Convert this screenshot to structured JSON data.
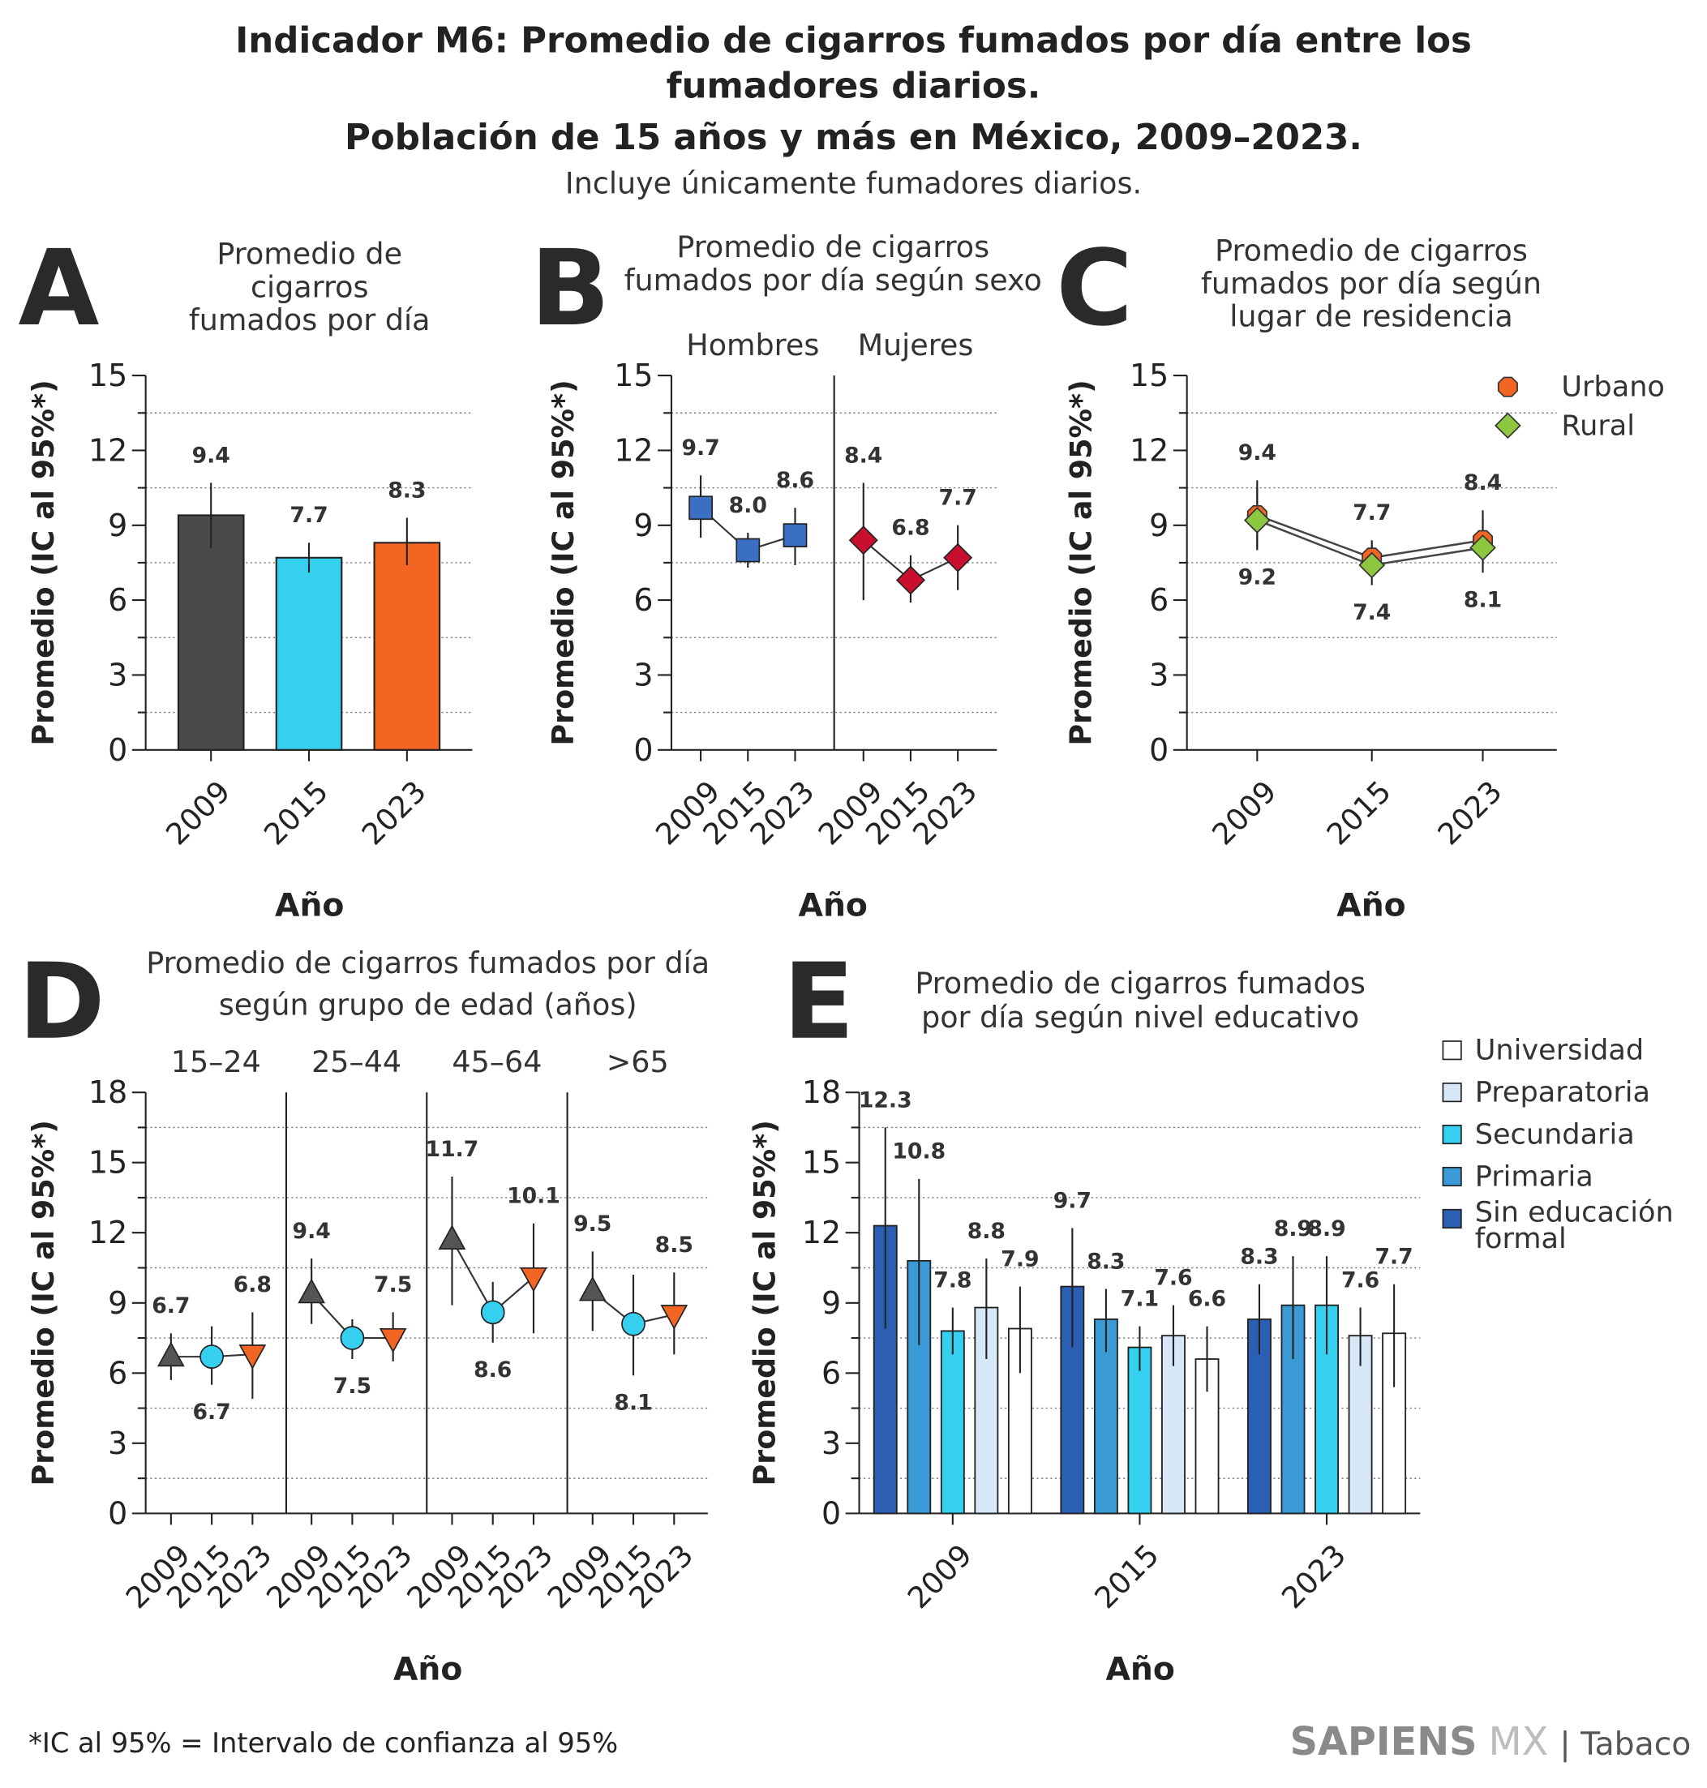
{
  "header": {
    "title": [
      "Indicador M6: Promedio de cigarros fumados por día entre los",
      "fumadores diarios.",
      "Población de 15 años y más en México, 2009–2023."
    ],
    "subtitle": "Incluye únicamente fumadores diarios."
  },
  "footer": {
    "note": "*IC al 95% = Intervalo de confianza al 95%",
    "brand": "SAPIENS",
    "brand_suffix": "MX",
    "section": "| Tabaco"
  },
  "chart_data": [
    {
      "type": "bar",
      "letter": "A",
      "title": [
        "Promedio de",
        "cigarros",
        "fumados por día"
      ],
      "y_label": "Promedio (IC al 95%*)",
      "x_label": "Año",
      "categories": [
        "2009",
        "2015",
        "2023"
      ],
      "values": [
        9.4,
        7.7,
        8.3
      ],
      "ci_low": [
        8.1,
        7.1,
        7.4
      ],
      "ci_high": [
        10.7,
        8.3,
        9.3
      ],
      "colors": [
        "#4a4a4a",
        "#35d0f0",
        "#f26522"
      ],
      "ylim": [
        0,
        15
      ],
      "yticks": [
        0,
        3,
        6,
        9,
        12,
        15
      ],
      "minor_yticks": [
        1.5,
        4.5,
        7.5,
        10.5,
        13.5
      ],
      "grid": true
    },
    {
      "type": "dot_groups",
      "letter": "B",
      "title": [
        "Promedio de cigarros",
        "fumados por día según sexo"
      ],
      "y_label": "Promedio (IC al 95%*)",
      "x_label": "Año",
      "groups": [
        {
          "name": "Hombres",
          "categories": [
            "2009",
            "2015",
            "2023"
          ],
          "values": [
            9.7,
            8.0,
            8.6
          ],
          "value_labels": [
            "9.7",
            "8.0",
            "8.6"
          ],
          "ci_low": [
            8.5,
            7.3,
            7.4
          ],
          "ci_high": [
            11.0,
            8.7,
            9.7
          ],
          "color": "#3a6fc4",
          "marker": "square"
        },
        {
          "name": "Mujeres",
          "categories": [
            "2009",
            "2015",
            "2023"
          ],
          "values": [
            8.4,
            6.8,
            7.7
          ],
          "ci_low": [
            6.0,
            5.9,
            6.4
          ],
          "ci_high": [
            10.7,
            7.8,
            9.0
          ],
          "color": "#c8102e",
          "marker": "diamond"
        }
      ],
      "ylim": [
        0,
        15
      ],
      "yticks": [
        0,
        3,
        6,
        9,
        12,
        15
      ],
      "minor_yticks": [
        1.5,
        4.5,
        7.5,
        10.5,
        13.5
      ],
      "grid": true
    },
    {
      "type": "line",
      "letter": "C",
      "title": [
        "Promedio de cigarros",
        "fumados por día según",
        "lugar de residencia"
      ],
      "y_label": "Promedio (IC al 95%*)",
      "x_label": "Año",
      "categories": [
        "2009",
        "2015",
        "2023"
      ],
      "series": [
        {
          "name": "Urbano",
          "color": "#f26522",
          "marker": "octagon",
          "values": [
            9.4,
            7.7,
            8.4
          ],
          "ci_low": [
            8.1,
            7.0,
            7.4
          ],
          "ci_high": [
            10.8,
            8.4,
            9.6
          ]
        },
        {
          "name": "Rural",
          "color": "#8dc63f",
          "marker": "diamond",
          "values": [
            9.2,
            7.4,
            8.1
          ],
          "ci_low": [
            8.0,
            6.6,
            7.1
          ],
          "ci_high": [
            10.5,
            8.2,
            9.3
          ]
        }
      ],
      "legend": "top-right",
      "ylim": [
        0,
        15
      ],
      "yticks": [
        0,
        3,
        6,
        9,
        12,
        15
      ],
      "minor_yticks": [
        1.5,
        4.5,
        7.5,
        10.5,
        13.5
      ],
      "grid": true
    },
    {
      "type": "dot_groups",
      "letter": "D",
      "title": [
        "Promedio de cigarros fumados por día",
        "según grupo de edad (años)"
      ],
      "y_label": "Promedio (IC al 95%*)",
      "x_label": "Año",
      "colors": [
        "#555555",
        "#35d0f0",
        "#f26522"
      ],
      "markers": [
        "triangle-up",
        "circle",
        "triangle-down"
      ],
      "groups": [
        {
          "name": "15–24",
          "categories": [
            "2009",
            "2015",
            "2023"
          ],
          "values": [
            6.7,
            6.7,
            6.8
          ],
          "ci_low": [
            5.7,
            5.5,
            4.9
          ],
          "ci_high": [
            7.7,
            8.0,
            8.6
          ]
        },
        {
          "name": "25–44",
          "categories": [
            "2009",
            "2015",
            "2023"
          ],
          "values": [
            9.4,
            7.5,
            7.5
          ],
          "ci_low": [
            8.1,
            6.6,
            6.5
          ],
          "ci_high": [
            10.9,
            8.3,
            8.6
          ]
        },
        {
          "name": "45–64",
          "categories": [
            "2009",
            "2015",
            "2023"
          ],
          "values": [
            11.7,
            8.6,
            10.1
          ],
          "ci_low": [
            8.9,
            7.3,
            7.7
          ],
          "ci_high": [
            14.4,
            9.9,
            12.4
          ]
        },
        {
          "name": ">65",
          "categories": [
            "2009",
            "2015",
            "2023"
          ],
          "values": [
            9.5,
            8.1,
            8.5
          ],
          "ci_low": [
            7.8,
            5.9,
            6.8
          ],
          "ci_high": [
            11.2,
            10.2,
            10.3
          ]
        }
      ],
      "ylim": [
        0,
        18
      ],
      "yticks": [
        0,
        3,
        6,
        9,
        12,
        15,
        18
      ],
      "minor_yticks": [
        1.5,
        4.5,
        7.5,
        10.5,
        13.5,
        16.5
      ],
      "grid": true
    },
    {
      "type": "grouped_bar",
      "letter": "E",
      "title": [
        "Promedio de cigarros fumados",
        "por día según nivel educativo"
      ],
      "y_label": "Promedio (IC al 95%*)",
      "x_label": "Año",
      "categories": [
        "2009",
        "2015",
        "2023"
      ],
      "series": [
        {
          "name": "Sin educación formal",
          "color": "#2b5fb3",
          "values": [
            12.3,
            9.7,
            8.3
          ],
          "ci_low": [
            7.9,
            7.1,
            6.8
          ],
          "ci_high": [
            16.5,
            12.2,
            9.8
          ]
        },
        {
          "name": "Primaria",
          "color": "#3a9ad6",
          "values": [
            10.8,
            8.3,
            8.9
          ],
          "ci_low": [
            7.2,
            6.9,
            6.6
          ],
          "ci_high": [
            14.3,
            9.6,
            11.0
          ]
        },
        {
          "name": "Secundaria",
          "color": "#35d0f0",
          "values": [
            7.8,
            7.1,
            8.9
          ],
          "ci_low": [
            6.8,
            6.1,
            6.8
          ],
          "ci_high": [
            8.8,
            8.0,
            11.0
          ]
        },
        {
          "name": "Preparatoria",
          "color": "#d6e8f7",
          "values": [
            8.8,
            7.6,
            7.6
          ],
          "ci_low": [
            6.6,
            6.3,
            6.3
          ],
          "ci_high": [
            10.9,
            8.9,
            8.8
          ]
        },
        {
          "name": "Universidad",
          "color": "#ffffff",
          "values": [
            7.9,
            6.6,
            7.7
          ],
          "ci_low": [
            6.0,
            5.2,
            5.4
          ],
          "ci_high": [
            9.7,
            8.0,
            9.8
          ]
        }
      ],
      "legend": "right",
      "ylim": [
        0,
        18
      ],
      "yticks": [
        0,
        3,
        6,
        9,
        12,
        15,
        18
      ],
      "minor_yticks": [
        1.5,
        4.5,
        7.5,
        10.5,
        13.5,
        16.5
      ],
      "grid": true
    }
  ]
}
